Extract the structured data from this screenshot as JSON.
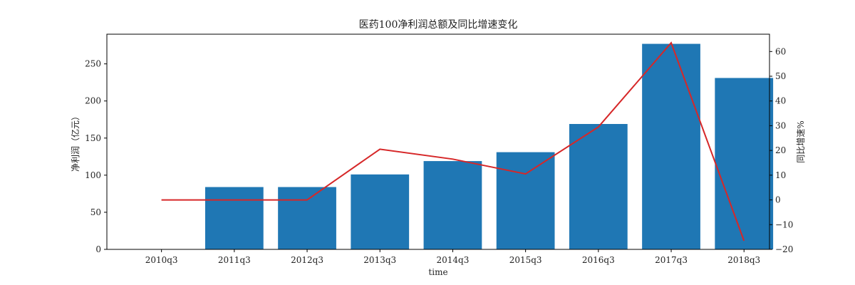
{
  "chart_data": {
    "type": "bar+line",
    "title": "医药100净利润总额及同比增速变化",
    "xlabel": "time",
    "ylabel": "净利润（亿元）",
    "y2label": "同比增速%",
    "categories": [
      "2010q3",
      "2011q3",
      "2012q3",
      "2013q3",
      "2014q3",
      "2015q3",
      "2016q3",
      "2017q3",
      "2018q3"
    ],
    "series": [
      {
        "kind": "bar",
        "axis": "left",
        "color": "#1f77b4",
        "values": [
          0,
          84,
          84,
          101,
          119,
          131,
          169,
          277,
          231
        ]
      },
      {
        "kind": "line",
        "axis": "right",
        "color": "#d62728",
        "values": [
          0,
          0,
          0,
          20.5,
          16.5,
          10.5,
          29.5,
          63.5,
          -16.5
        ]
      }
    ],
    "ylim": [
      0,
      290
    ],
    "y2lim": [
      -20,
      67
    ],
    "yticks": [
      0,
      50,
      100,
      150,
      200,
      250
    ],
    "y2ticks": [
      -20,
      -10,
      0,
      10,
      20,
      30,
      40,
      50,
      60
    ],
    "y2label_color": "#d62728",
    "grid": false,
    "legend": "none"
  }
}
